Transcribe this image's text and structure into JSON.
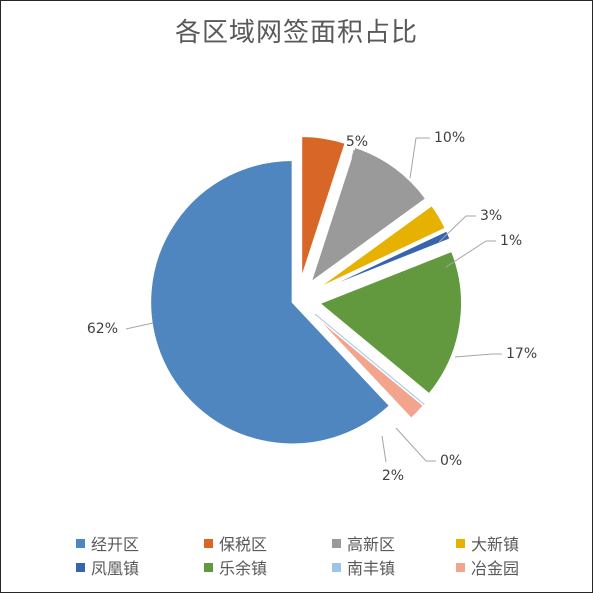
{
  "chart_data": {
    "type": "pie",
    "title": "各区域网签面积占比",
    "categories": [
      "经开区",
      "保税区",
      "高新区",
      "大新镇",
      "凤凰镇",
      "乐余镇",
      "南丰镇",
      "冶金园"
    ],
    "values": [
      62,
      5,
      10,
      3,
      1,
      17,
      0,
      2
    ],
    "labels": [
      "62%",
      "5%",
      "10%",
      "3%",
      "1%",
      "17%",
      "0%",
      "2%"
    ],
    "colors": [
      "#4f86bf",
      "#d86626",
      "#9a9a9a",
      "#e6b100",
      "#3664ad",
      "#62993f",
      "#9dc3e6",
      "#f2a58c"
    ],
    "legend_position": "bottom",
    "exploded": true
  }
}
